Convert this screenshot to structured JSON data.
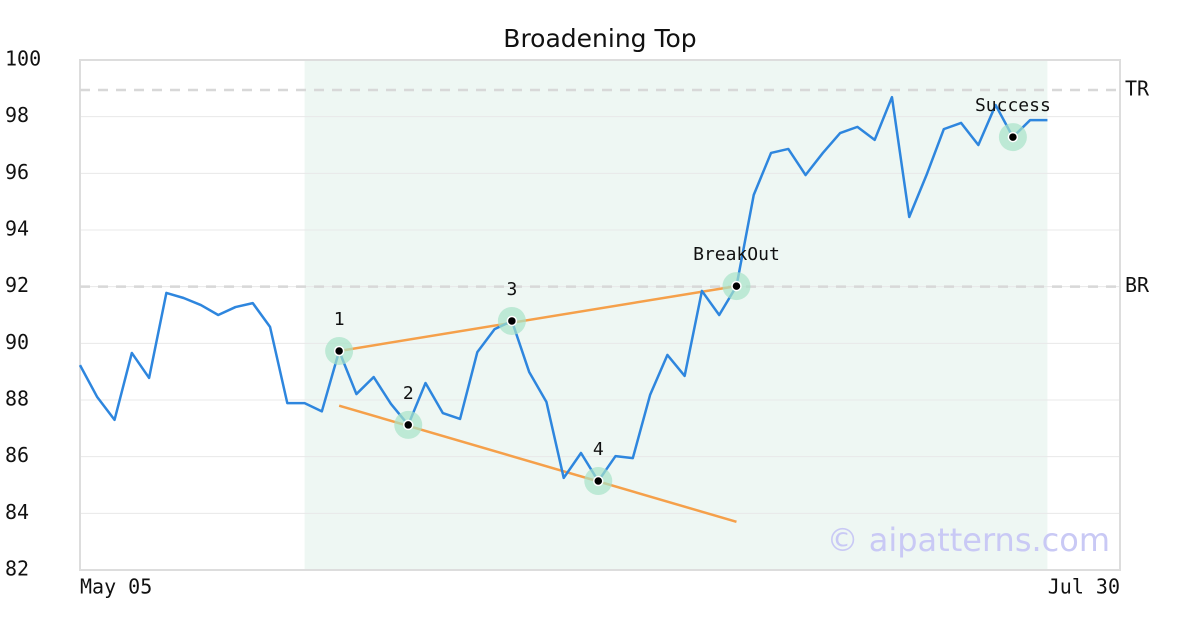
{
  "chart_data": {
    "type": "line",
    "title": "Broadening Top",
    "x": [
      0,
      1,
      2,
      3,
      4,
      5,
      6,
      7,
      8,
      9,
      10,
      11,
      12,
      13,
      14,
      15,
      16,
      17,
      18,
      19,
      20,
      21,
      22,
      23,
      24,
      25,
      26,
      27,
      28,
      29,
      30,
      31,
      32,
      33,
      34,
      35,
      36,
      37,
      38,
      39,
      40,
      41,
      42,
      43,
      44,
      45,
      46,
      47,
      48,
      49,
      50,
      51,
      52,
      53,
      54,
      55,
      56
    ],
    "values": [
      89.23,
      88.1,
      87.3,
      89.66,
      88.78,
      91.78,
      91.6,
      91.35,
      91.0,
      91.28,
      91.42,
      90.58,
      87.89,
      87.89,
      87.6,
      89.73,
      88.21,
      88.81,
      87.86,
      87.12,
      88.6,
      87.54,
      87.33,
      89.69,
      90.5,
      90.79,
      88.99,
      87.93,
      85.25,
      86.13,
      85.14,
      86.02,
      85.95,
      88.18,
      89.59,
      88.85,
      91.85,
      91.0,
      92.02,
      95.24,
      96.72,
      96.86,
      95.94,
      96.72,
      97.42,
      97.64,
      97.18,
      98.69,
      94.46,
      95.94,
      97.56,
      97.78,
      97.0,
      98.41,
      97.28,
      97.88,
      97.88
    ],
    "color": "#2e86de",
    "xlim": [
      0,
      60.2
    ],
    "xticks": [
      {
        "value": 0,
        "label": "May 05"
      },
      {
        "value": 60.2,
        "label": "Jul 30"
      }
    ],
    "ylim": [
      82,
      100
    ],
    "yticks": [
      82,
      84,
      86,
      88,
      90,
      92,
      94,
      96,
      98,
      100
    ],
    "grid": true,
    "shaded_range": [
      13,
      56
    ],
    "shade_color": "#eef7f3",
    "levels": [
      {
        "name": "TR",
        "value": 98.94
      },
      {
        "name": "BR",
        "value": 92
      }
    ],
    "trendline_color": "#f5a04a",
    "trendlines": [
      {
        "x": [
          15,
          38
        ],
        "values": [
          89.73,
          92.02
        ]
      },
      {
        "x": [
          15,
          38
        ],
        "values": [
          87.8,
          83.7
        ]
      }
    ],
    "points": [
      {
        "label": "1",
        "x": 15,
        "value": 89.73
      },
      {
        "label": "2",
        "x": 19,
        "value": 87.12
      },
      {
        "label": "3",
        "x": 25,
        "value": 90.79
      },
      {
        "label": "4",
        "x": 30,
        "value": 85.14
      },
      {
        "label": "BreakOut",
        "x": 38,
        "value": 92.02
      },
      {
        "label": "Success",
        "x": 54,
        "value": 97.28
      }
    ],
    "watermark": "© aipatterns.com"
  }
}
